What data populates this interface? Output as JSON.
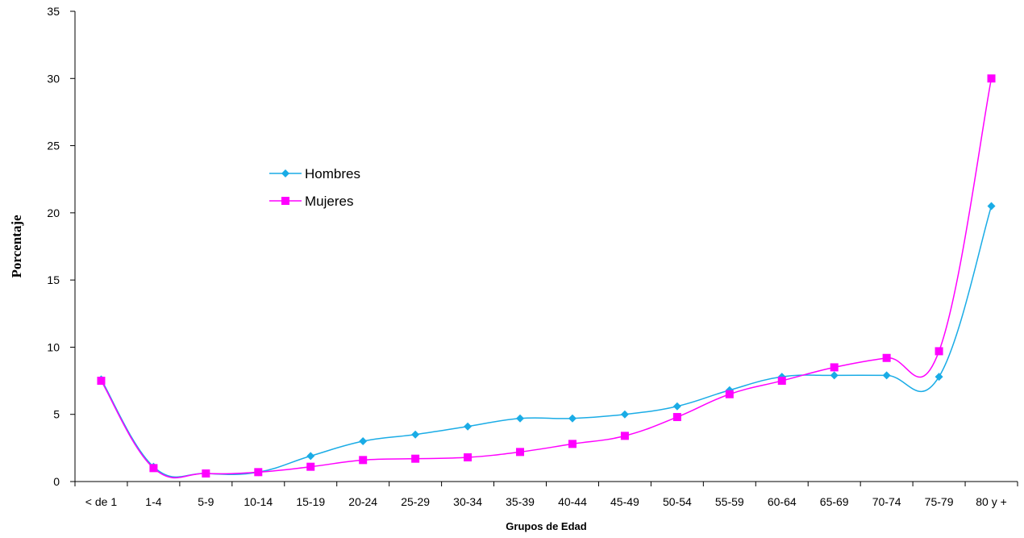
{
  "chart_data": {
    "type": "line",
    "title": "",
    "xlabel": "Grupos de Edad",
    "ylabel": "Porcentaje",
    "categories": [
      "< de 1",
      "1-4",
      "5-9",
      "10-14",
      "15-19",
      "20-24",
      "25-29",
      "30-34",
      "35-39",
      "40-44",
      "45-49",
      "50-54",
      "55-59",
      "60-64",
      "65-69",
      "70-74",
      "75-79",
      "80 y +"
    ],
    "ylim": [
      0,
      35
    ],
    "yticks": [
      0,
      5,
      10,
      15,
      20,
      25,
      30,
      35
    ],
    "grid": false,
    "legend_position": "left-center",
    "series": [
      {
        "name": "Hombres",
        "color": "#1AACE6",
        "marker": "diamond",
        "values": [
          7.6,
          1.1,
          0.6,
          0.7,
          1.9,
          3.0,
          3.5,
          4.1,
          4.7,
          4.7,
          5.0,
          5.6,
          6.8,
          7.8,
          7.9,
          7.9,
          7.8,
          20.5
        ]
      },
      {
        "name": "Mujeres",
        "color": "#FF00FF",
        "marker": "square",
        "values": [
          7.5,
          1.0,
          0.6,
          0.7,
          1.1,
          1.6,
          1.7,
          1.8,
          2.2,
          2.8,
          3.4,
          4.8,
          6.5,
          7.5,
          8.5,
          9.2,
          9.7,
          30.0
        ]
      }
    ]
  }
}
